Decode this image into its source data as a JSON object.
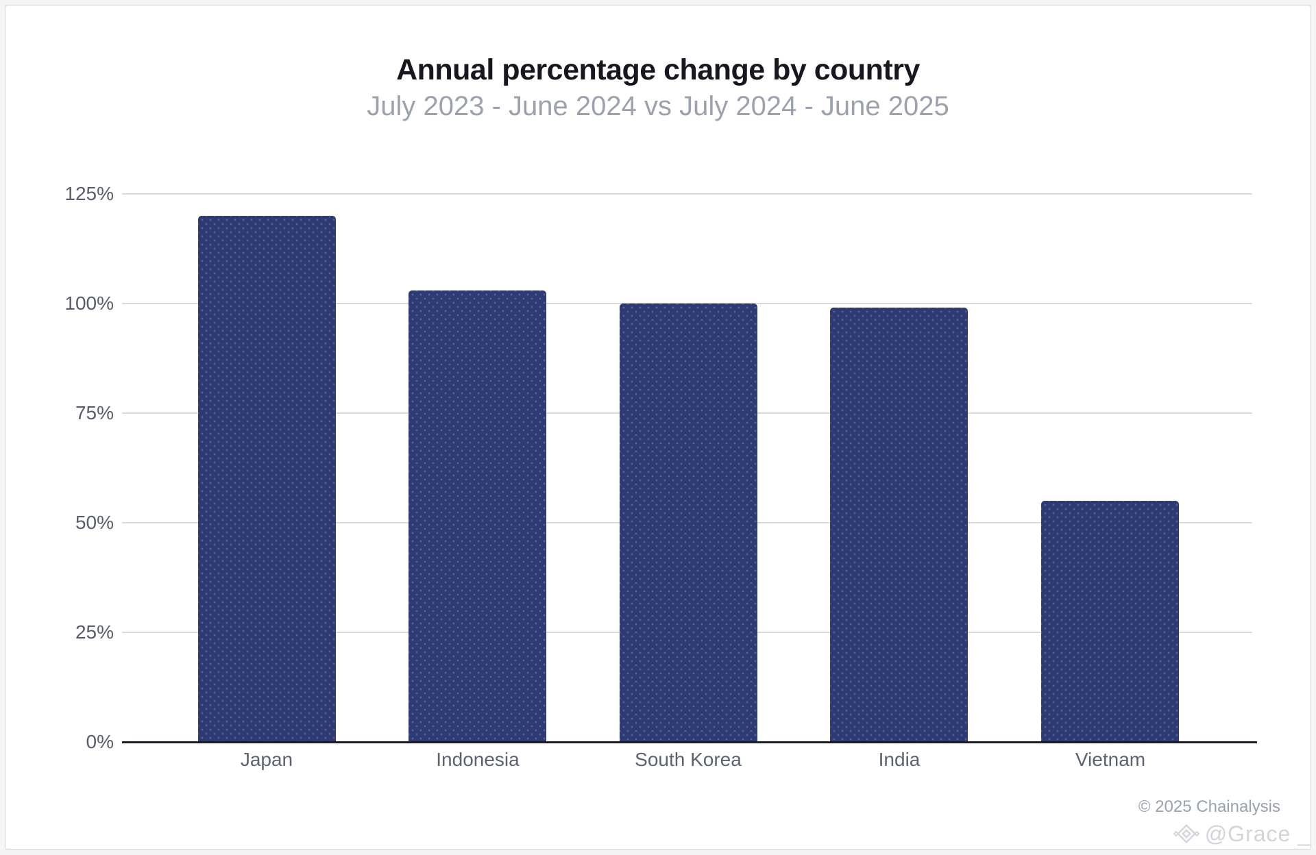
{
  "header": {
    "title": "Annual percentage change by country",
    "subtitle": "July 2023 - June 2024 vs July 2024 - June 2025"
  },
  "footer": {
    "attribution": "© 2025 Chainalysis",
    "watermark_handle": "@Grace _",
    "watermark_icon": "diamond-logo-icon"
  },
  "colors": {
    "bar": "#2d3a74",
    "gridline": "#d9d9db",
    "axis_line": "#1c1c24",
    "title_text": "#17171f",
    "subtitle_text": "#9ba1ad",
    "tick_text": "#565c69",
    "category_text": "#5d6270",
    "attribution_text": "#9aa2ab",
    "watermark_text": "#d3d4d9"
  },
  "chart_data": {
    "type": "bar",
    "title": "Annual percentage change by country",
    "subtitle": "July 2023 - June 2024 vs July 2024 - June 2025",
    "categories": [
      "Japan",
      "Indonesia",
      "South Korea",
      "India",
      "Vietnam"
    ],
    "values": [
      120,
      103,
      100,
      99,
      55
    ],
    "unit": "%",
    "xlabel": "",
    "ylabel": "",
    "ylim": [
      0,
      125
    ],
    "ytick_values": [
      0,
      25,
      50,
      75,
      100,
      125
    ],
    "ytick_labels": [
      "0%",
      "25%",
      "50%",
      "75%",
      "100%",
      "125%"
    ],
    "grid": true,
    "legend": "none",
    "bar_color": "#2d3a74"
  }
}
